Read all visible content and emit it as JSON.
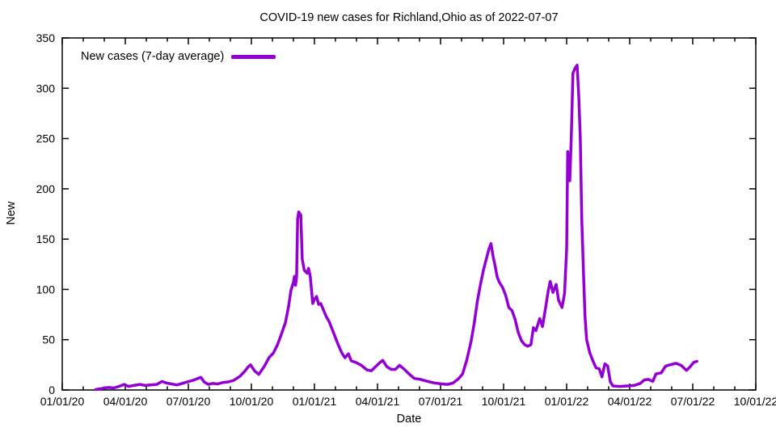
{
  "chart_data": {
    "type": "line",
    "title": "COVID-19 new cases for Richland,Ohio as of 2022-07-07",
    "xlabel": "Date",
    "ylabel": "New",
    "legend": {
      "label": "New cases (7-day average)",
      "position": "top-left"
    },
    "grid": false,
    "x_axis": {
      "tick_labels": [
        "01/01/20",
        "04/01/20",
        "07/01/20",
        "10/01/20",
        "01/01/21",
        "04/01/21",
        "07/01/21",
        "10/01/21",
        "01/01/22",
        "04/01/22",
        "07/01/22",
        "10/01/22"
      ],
      "tick_month_positions": [
        0,
        3,
        6,
        9,
        12,
        15,
        18,
        21,
        24,
        27,
        30,
        33
      ],
      "minor_tick_every_months": 1,
      "range_months": [
        0,
        33
      ]
    },
    "y_axis": {
      "tick_labels": [
        "0",
        "50",
        "100",
        "150",
        "200",
        "250",
        "300",
        "350"
      ],
      "tick_values": [
        0,
        50,
        100,
        150,
        200,
        250,
        300,
        350
      ],
      "range": [
        0,
        350
      ]
    },
    "series": [
      {
        "name": "New cases (7-day average)",
        "color": "#9400d3",
        "points_format": "[months_since_2020-01-01, new_cases_7day_avg]",
        "points": [
          [
            1.6,
            0.5
          ],
          [
            1.9,
            1.5
          ],
          [
            2.2,
            2.5
          ],
          [
            2.45,
            2
          ],
          [
            2.7,
            3.5
          ],
          [
            2.95,
            5.5
          ],
          [
            3.15,
            3.5
          ],
          [
            3.4,
            4.5
          ],
          [
            3.7,
            5.5
          ],
          [
            3.95,
            4.5
          ],
          [
            4.2,
            5
          ],
          [
            4.5,
            5.5
          ],
          [
            4.75,
            8.5
          ],
          [
            4.95,
            7
          ],
          [
            5.2,
            6
          ],
          [
            5.45,
            5
          ],
          [
            5.7,
            6.5
          ],
          [
            5.95,
            8
          ],
          [
            6.2,
            9.5
          ],
          [
            6.45,
            11.5
          ],
          [
            6.6,
            12.5
          ],
          [
            6.75,
            8
          ],
          [
            6.95,
            5.5
          ],
          [
            7.15,
            6.5
          ],
          [
            7.4,
            6
          ],
          [
            7.65,
            7.5
          ],
          [
            7.9,
            8
          ],
          [
            8.15,
            9.5
          ],
          [
            8.45,
            13.5
          ],
          [
            8.7,
            19
          ],
          [
            8.85,
            23
          ],
          [
            8.96,
            25
          ],
          [
            9.15,
            19
          ],
          [
            9.35,
            15.5
          ],
          [
            9.6,
            23
          ],
          [
            9.85,
            32.5
          ],
          [
            10.04,
            36.5
          ],
          [
            10.23,
            44.5
          ],
          [
            10.42,
            55
          ],
          [
            10.62,
            67
          ],
          [
            10.77,
            83
          ],
          [
            10.88,
            99
          ],
          [
            11.0,
            107
          ],
          [
            11.05,
            113
          ],
          [
            11.1,
            104
          ],
          [
            11.15,
            112
          ],
          [
            11.2,
            170
          ],
          [
            11.25,
            177
          ],
          [
            11.35,
            174
          ],
          [
            11.42,
            130
          ],
          [
            11.52,
            119
          ],
          [
            11.65,
            116
          ],
          [
            11.72,
            121
          ],
          [
            11.8,
            113
          ],
          [
            11.92,
            86
          ],
          [
            12.0,
            90
          ],
          [
            12.1,
            93
          ],
          [
            12.2,
            85
          ],
          [
            12.3,
            86
          ],
          [
            12.42,
            80
          ],
          [
            12.56,
            73
          ],
          [
            12.7,
            68
          ],
          [
            12.85,
            60
          ],
          [
            13.0,
            52
          ],
          [
            13.15,
            44
          ],
          [
            13.3,
            37
          ],
          [
            13.45,
            32
          ],
          [
            13.62,
            36
          ],
          [
            13.75,
            29
          ],
          [
            13.95,
            27.5
          ],
          [
            14.2,
            25
          ],
          [
            14.5,
            20
          ],
          [
            14.7,
            19
          ],
          [
            14.95,
            24
          ],
          [
            15.1,
            27
          ],
          [
            15.25,
            29.5
          ],
          [
            15.45,
            23
          ],
          [
            15.65,
            20.5
          ],
          [
            15.85,
            20.5
          ],
          [
            16.05,
            24.5
          ],
          [
            16.25,
            21
          ],
          [
            16.5,
            16
          ],
          [
            16.75,
            11.5
          ],
          [
            17.05,
            10.5
          ],
          [
            17.4,
            8.5
          ],
          [
            17.7,
            7
          ],
          [
            18.05,
            6
          ],
          [
            18.35,
            5.5
          ],
          [
            18.6,
            7
          ],
          [
            18.85,
            11
          ],
          [
            19.05,
            16
          ],
          [
            19.25,
            30
          ],
          [
            19.45,
            48
          ],
          [
            19.6,
            66
          ],
          [
            19.75,
            88
          ],
          [
            19.9,
            105
          ],
          [
            20.05,
            120
          ],
          [
            20.2,
            132
          ],
          [
            20.3,
            140
          ],
          [
            20.4,
            145.5
          ],
          [
            20.5,
            133
          ],
          [
            20.6,
            123
          ],
          [
            20.7,
            112
          ],
          [
            20.8,
            107
          ],
          [
            20.95,
            102
          ],
          [
            21.1,
            94
          ],
          [
            21.25,
            82
          ],
          [
            21.4,
            79
          ],
          [
            21.55,
            70
          ],
          [
            21.7,
            57
          ],
          [
            21.85,
            49
          ],
          [
            22.0,
            45
          ],
          [
            22.15,
            43.5
          ],
          [
            22.3,
            45
          ],
          [
            22.42,
            62
          ],
          [
            22.54,
            59
          ],
          [
            22.72,
            71
          ],
          [
            22.85,
            63
          ],
          [
            23.0,
            82
          ],
          [
            23.12,
            98
          ],
          [
            23.22,
            108
          ],
          [
            23.35,
            97
          ],
          [
            23.5,
            105
          ],
          [
            23.62,
            89
          ],
          [
            23.78,
            82
          ],
          [
            23.9,
            96
          ],
          [
            24.0,
            140
          ],
          [
            24.05,
            237
          ],
          [
            24.12,
            222
          ],
          [
            24.15,
            208
          ],
          [
            24.22,
            250
          ],
          [
            24.3,
            315
          ],
          [
            24.4,
            320
          ],
          [
            24.5,
            323
          ],
          [
            24.58,
            290
          ],
          [
            24.65,
            250
          ],
          [
            24.72,
            170
          ],
          [
            24.8,
            118
          ],
          [
            24.87,
            75
          ],
          [
            24.95,
            50
          ],
          [
            25.1,
            37
          ],
          [
            25.25,
            29
          ],
          [
            25.4,
            22
          ],
          [
            25.55,
            21
          ],
          [
            25.68,
            13
          ],
          [
            25.82,
            26
          ],
          [
            25.95,
            24
          ],
          [
            26.08,
            8
          ],
          [
            26.2,
            4
          ],
          [
            26.5,
            3.5
          ],
          [
            26.9,
            4
          ],
          [
            27.2,
            4.5
          ],
          [
            27.5,
            6.5
          ],
          [
            27.7,
            10
          ],
          [
            27.9,
            10.5
          ],
          [
            28.1,
            8.5
          ],
          [
            28.25,
            16
          ],
          [
            28.5,
            17
          ],
          [
            28.7,
            23.5
          ],
          [
            28.9,
            25
          ],
          [
            29.2,
            26.5
          ],
          [
            29.45,
            24.5
          ],
          [
            29.7,
            19.5
          ],
          [
            29.85,
            22.5
          ],
          [
            30.05,
            27.5
          ],
          [
            30.2,
            28.5
          ]
        ]
      }
    ],
    "colors": {
      "line": "#9400d3",
      "axis": "#000000",
      "background": "#ffffff"
    }
  }
}
